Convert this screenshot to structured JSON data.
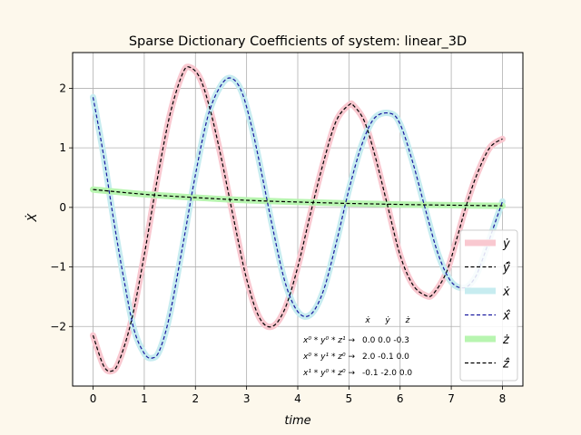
{
  "chart_data": {
    "type": "line",
    "title": "Sparse Dictionary Coefficients of system: linear_3D",
    "xlabel": "time",
    "ylabel": "Ẋ",
    "xlim": [
      -0.4,
      8.4
    ],
    "ylim": [
      -3.0,
      2.6
    ],
    "grid": true,
    "legend_position": "lower-right",
    "x_ticks": [
      0,
      1,
      2,
      3,
      4,
      5,
      6,
      7,
      8
    ],
    "y_ticks": [
      -2,
      -1,
      0,
      1,
      2
    ],
    "series": [
      {
        "name": "ẏ",
        "style": "thick",
        "color": "#f9c8d0",
        "x": [
          0,
          0.2,
          0.35,
          0.5,
          0.75,
          1.0,
          1.25,
          1.5,
          1.75,
          1.9,
          2.1,
          2.3,
          2.5,
          2.75,
          3.0,
          3.25,
          3.5,
          3.75,
          4.0,
          4.25,
          4.5,
          4.75,
          5.0,
          5.1,
          5.3,
          5.5,
          5.75,
          6.0,
          6.25,
          6.5,
          6.65,
          6.9,
          7.1,
          7.3,
          7.5,
          7.75,
          8.0
        ],
        "y": [
          -2.15,
          -2.65,
          -2.75,
          -2.6,
          -1.9,
          -0.8,
          0.45,
          1.55,
          2.25,
          2.35,
          2.15,
          1.6,
          0.85,
          -0.2,
          -1.2,
          -1.85,
          -2.0,
          -1.7,
          -1.0,
          -0.1,
          0.75,
          1.45,
          1.72,
          1.7,
          1.45,
          0.9,
          0.05,
          -0.8,
          -1.3,
          -1.48,
          -1.45,
          -1.1,
          -0.55,
          0.05,
          0.55,
          1.0,
          1.15
        ]
      },
      {
        "name": "ŷ̂",
        "style": "dashed",
        "color": "#000000",
        "same_as": "ẏ"
      },
      {
        "name": "ẋ",
        "style": "thick",
        "color": "#c7ecf0",
        "x": [
          0,
          0.2,
          0.4,
          0.6,
          0.8,
          1.0,
          1.15,
          1.3,
          1.5,
          1.75,
          2.0,
          2.25,
          2.5,
          2.7,
          2.9,
          3.1,
          3.3,
          3.5,
          3.75,
          4.0,
          4.25,
          4.5,
          4.75,
          5.0,
          5.25,
          5.5,
          5.8,
          6.0,
          6.25,
          6.5,
          6.75,
          7.0,
          7.25,
          7.45,
          7.6,
          7.8,
          8.0
        ],
        "y": [
          1.85,
          0.9,
          -0.2,
          -1.2,
          -2.05,
          -2.45,
          -2.53,
          -2.4,
          -1.8,
          -0.65,
          0.55,
          1.55,
          2.05,
          2.17,
          1.95,
          1.35,
          0.55,
          -0.3,
          -1.25,
          -1.75,
          -1.8,
          -1.4,
          -0.6,
          0.3,
          1.05,
          1.5,
          1.58,
          1.4,
          0.75,
          -0.05,
          -0.8,
          -1.25,
          -1.35,
          -1.2,
          -0.9,
          -0.4,
          0.1
        ]
      },
      {
        "name": "ẋ̂",
        "style": "dashed",
        "color": "#1a1aa0",
        "same_as": "ẋ"
      },
      {
        "name": "ż",
        "style": "thick",
        "color": "#b8f5b0",
        "x": [
          0,
          1,
          2,
          3,
          4,
          5,
          6,
          7,
          8
        ],
        "y": [
          0.3,
          0.22,
          0.165,
          0.12,
          0.09,
          0.067,
          0.05,
          0.037,
          0.027
        ]
      },
      {
        "name": "ż̂",
        "style": "dashed",
        "color": "#000000",
        "same_as": "ż"
      }
    ],
    "legend": [
      "ẏ",
      "ŷ̂",
      "ẋ",
      "ẋ̂",
      "ż",
      "ż̂"
    ],
    "coefficient_table": {
      "headers": [
        "ẋ",
        "ẏ",
        "ż"
      ],
      "rows": [
        {
          "term": "x⁰ * y⁰ * z¹ →",
          "values": [
            "0.0",
            "0.0",
            "-0.3"
          ]
        },
        {
          "term": "x⁰ * y¹ * z⁰ →",
          "values": [
            "2.0",
            "-0.1",
            "0.0"
          ]
        },
        {
          "term": "x¹ * y⁰ * z⁰ →",
          "values": [
            "-0.1",
            "-2.0",
            "0.0"
          ]
        }
      ]
    }
  }
}
